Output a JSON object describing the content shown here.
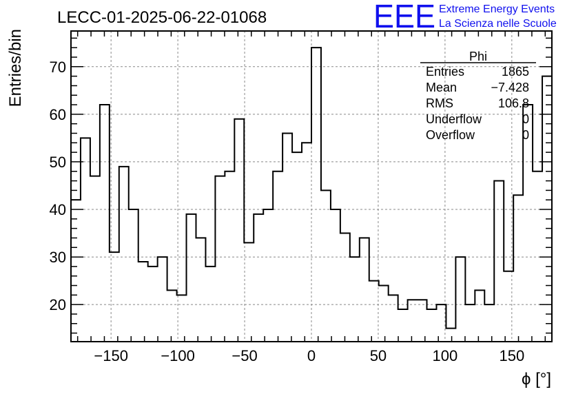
{
  "logo": {
    "text": "EEE",
    "line1": "Extreme Energy Events",
    "line2": "La Scienza nelle Scuole",
    "color": "#1010ee"
  },
  "stats": {
    "title": "Phi",
    "rows": [
      {
        "label": "Entries",
        "value": "1865"
      },
      {
        "label": "Mean",
        "value": "−7.428"
      },
      {
        "label": "RMS",
        "value": "106.8"
      },
      {
        "label": "Underflow",
        "value": "0"
      },
      {
        "label": "Overflow",
        "value": "0"
      }
    ]
  },
  "chart_data": {
    "type": "histogram",
    "title": "LECC-01-2025-06-22-01068",
    "xlabel": "ϕ [°]",
    "ylabel": "Entries/bin",
    "xlim": [
      -180,
      180
    ],
    "ylim": [
      12.2,
      77.5
    ],
    "grid": true,
    "bin_width": 7.2,
    "bin_edges_start": -180,
    "values": [
      42,
      55,
      47,
      62,
      31,
      49,
      40,
      29,
      28,
      30,
      23,
      22,
      39,
      34,
      28,
      47,
      48,
      59,
      33,
      39,
      40,
      48,
      56,
      52,
      54,
      74,
      44,
      40,
      35,
      30,
      34,
      25,
      24,
      22,
      19,
      21,
      21,
      19,
      20,
      15,
      30,
      20,
      23,
      20,
      46,
      27,
      43,
      62,
      48,
      68
    ],
    "xticks": [
      -150,
      -100,
      -50,
      0,
      50,
      100,
      150
    ],
    "xtick_labels": [
      "−150",
      "−100",
      "−50",
      "0",
      "50",
      "100",
      "150"
    ],
    "yticks": [
      20,
      30,
      40,
      50,
      60,
      70
    ],
    "ytick_labels": [
      "20",
      "30",
      "40",
      "50",
      "60",
      "70"
    ]
  }
}
